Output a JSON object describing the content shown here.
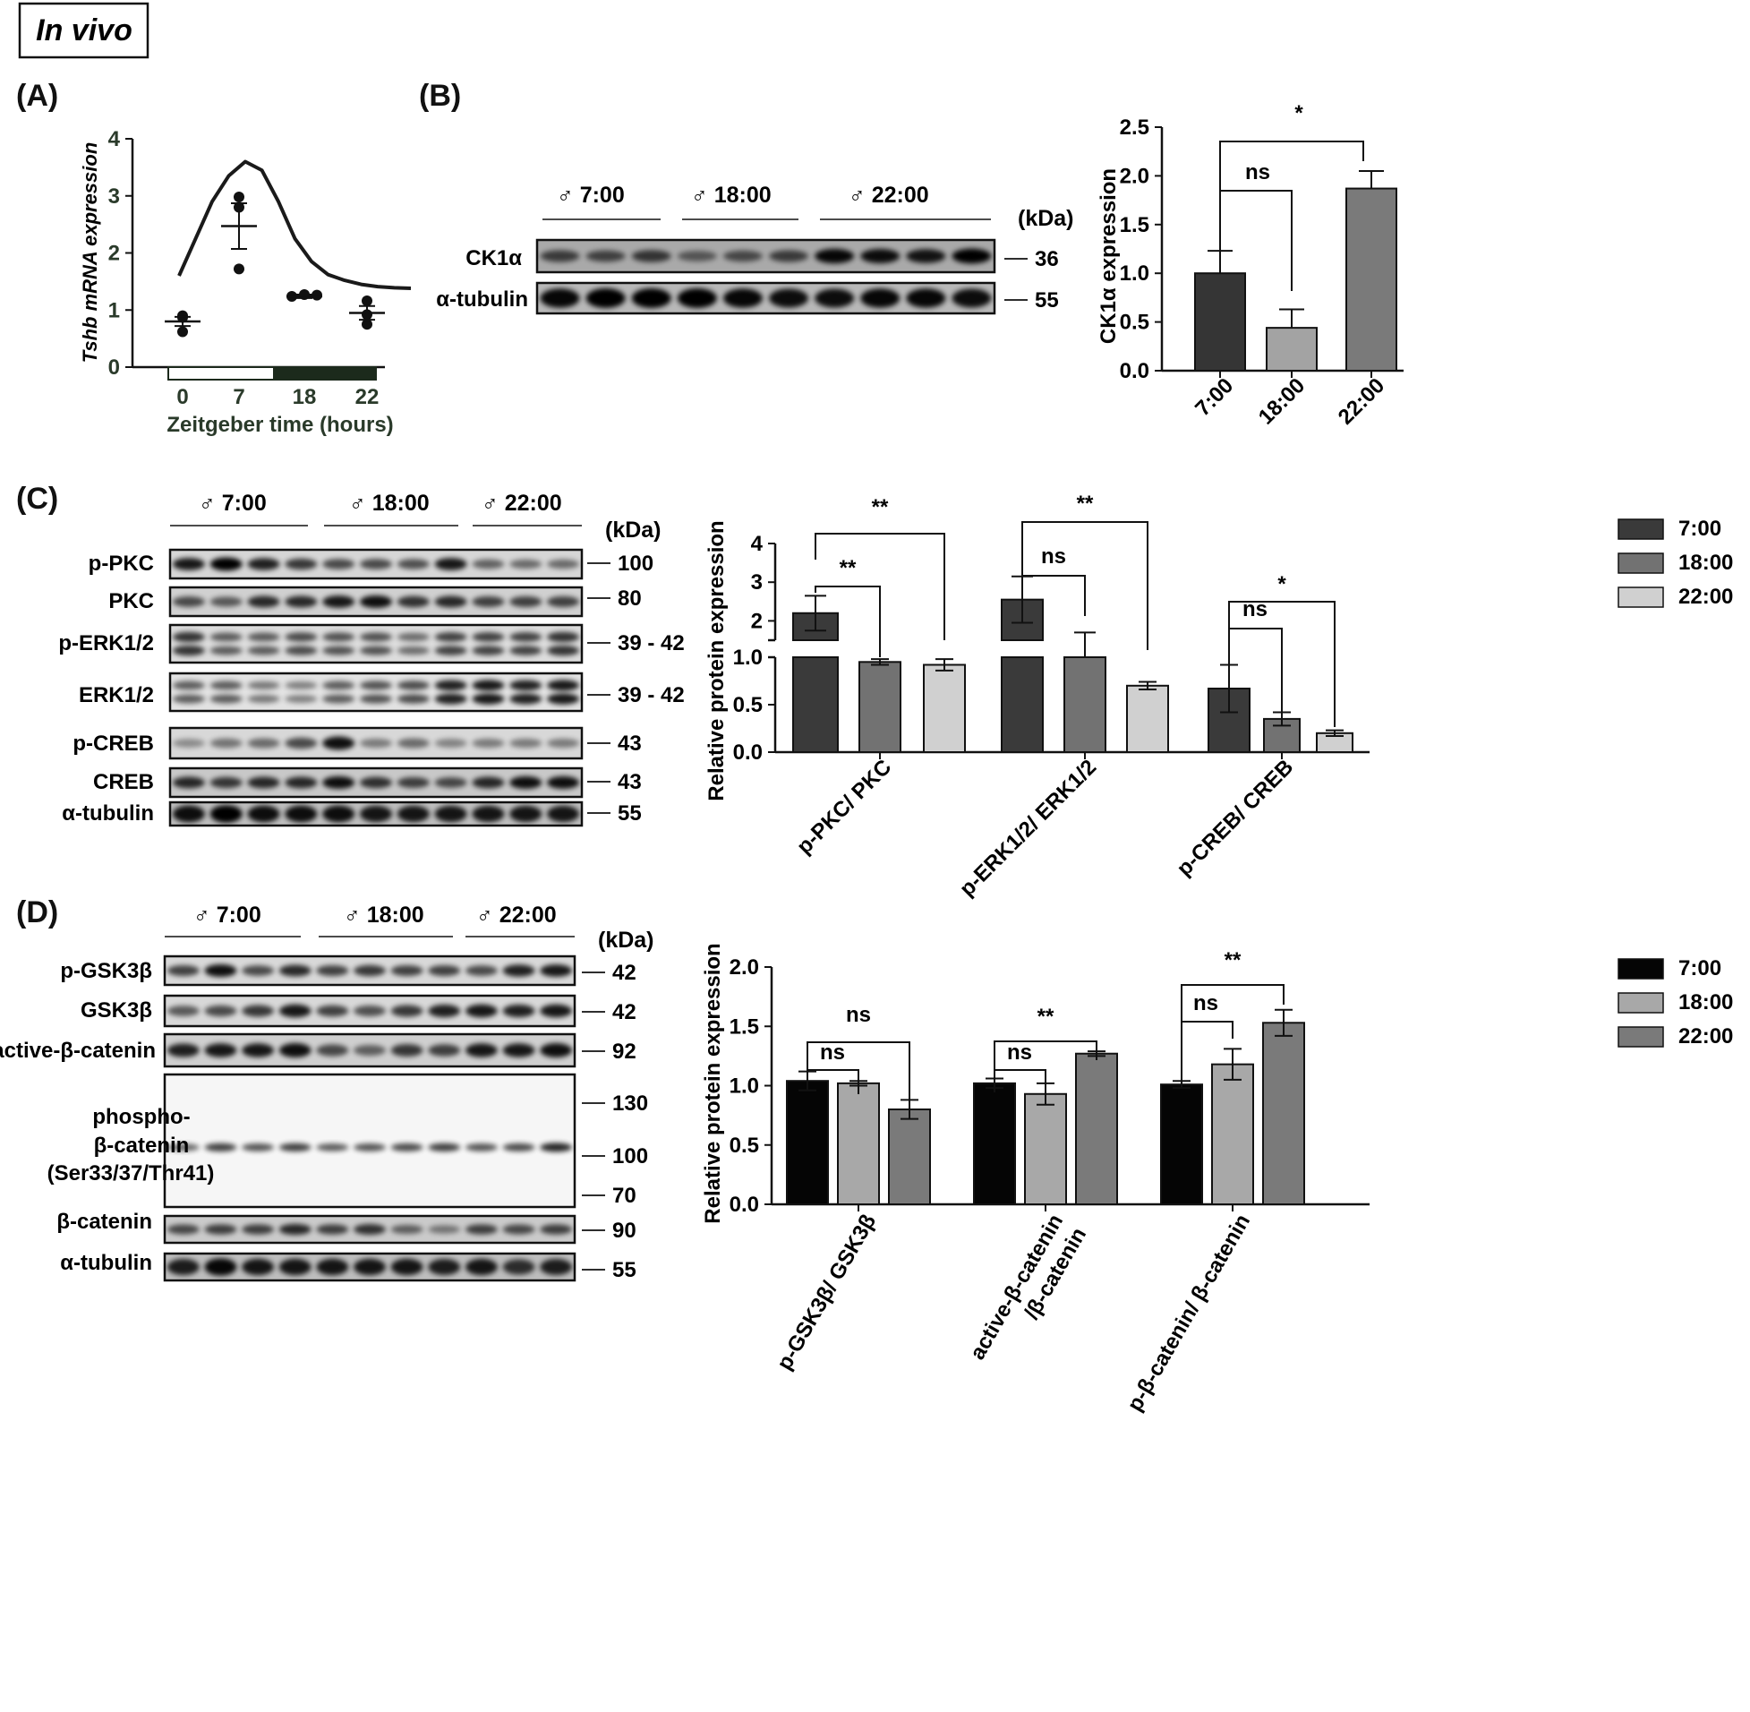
{
  "header": {
    "invivo": "In vivo"
  },
  "panels": {
    "A": "(A)",
    "B": "(B)",
    "C": "(C)",
    "D": "(D)"
  },
  "chart_data": [
    {
      "panel": "A",
      "type": "scatter",
      "ylabel": "Tshb mRNA expression",
      "xlabel": "Zeitgeber time (hours)",
      "ylim": [
        0,
        4
      ],
      "yticks": [
        "0",
        "1",
        "2",
        "3",
        "4"
      ],
      "categories": [
        "0",
        "7",
        "18",
        "22"
      ],
      "points": [
        [
          0.9,
          0.62,
          0.87
        ],
        [
          2.98,
          1.72,
          2.8
        ],
        [
          1.24,
          1.27,
          1.26
        ],
        [
          1.16,
          0.75,
          0.92
        ]
      ],
      "means": [
        0.8,
        2.47,
        1.24,
        0.95
      ],
      "sem": [
        0.08,
        0.4,
        0.03,
        0.12
      ],
      "fit_curve": [
        [
          0,
          1.6
        ],
        [
          1,
          2.25
        ],
        [
          2,
          2.9
        ],
        [
          3,
          3.35
        ],
        [
          4,
          3.6
        ],
        [
          5,
          3.45
        ],
        [
          6,
          2.9
        ],
        [
          7,
          2.25
        ],
        [
          8,
          1.85
        ],
        [
          9,
          1.62
        ],
        [
          10,
          1.52
        ],
        [
          11,
          1.45
        ],
        [
          12,
          1.41
        ],
        [
          13,
          1.39
        ],
        [
          14,
          1.38
        ]
      ],
      "light_bar": {
        "light": "0-7",
        "dark": "7-22"
      }
    },
    {
      "panel": "B",
      "type": "bar",
      "ylabel": "CK1α expression",
      "categories": [
        "7:00",
        "18:00",
        "22:00"
      ],
      "values": [
        1.0,
        0.44,
        1.87
      ],
      "errors": [
        0.23,
        0.19,
        0.18
      ],
      "colors": [
        "#353535",
        "#a3a3a3",
        "#7a7a7a"
      ],
      "ylim": [
        0,
        2.5
      ],
      "yticks": [
        "0.0",
        "0.5",
        "1.0",
        "1.5",
        "2.0",
        "2.5"
      ],
      "significance": [
        {
          "pair": "7:00-18:00",
          "label": "ns"
        },
        {
          "pair": "7:00-22:00",
          "label": "*"
        }
      ]
    },
    {
      "panel": "C",
      "type": "bar",
      "ylabel": "Relative protein expression",
      "categories": [
        "p-PKC/ PKC",
        "p-ERK1/2/ ERK1/2",
        "p-CREB/ CREB"
      ],
      "series": [
        {
          "name": "7:00",
          "values": [
            2.2,
            2.55,
            0.67
          ],
          "errors": [
            0.45,
            0.6,
            0.25
          ],
          "color": "#3a3a3a"
        },
        {
          "name": "18:00",
          "values": [
            0.95,
            1.35,
            0.35
          ],
          "errors": [
            0.03,
            0.35,
            0.07
          ],
          "color": "#727272"
        },
        {
          "name": "22:00",
          "values": [
            0.92,
            0.7,
            0.2
          ],
          "errors": [
            0.06,
            0.04,
            0.03
          ],
          "color": "#d0d0d0"
        }
      ],
      "axis_break": [
        1.0,
        1.5
      ],
      "yticks_lower": [
        "0.0",
        "0.5",
        "1.0"
      ],
      "yticks_upper": [
        "2",
        "3",
        "4"
      ],
      "significance": [
        {
          "group": "p-PKC/ PKC",
          "inner": "**",
          "outer": "**"
        },
        {
          "group": "p-ERK1/2/ ERK1/2",
          "inner": "ns",
          "outer": "**"
        },
        {
          "group": "p-CREB/ CREB",
          "inner": "ns",
          "outer": "*"
        }
      ]
    },
    {
      "panel": "D",
      "type": "bar",
      "ylabel": "Relative protein expression",
      "categories": [
        "p-GSK3β/ GSK3β",
        "active-β-catenin /β-catenin",
        "p-β-catenin/ β-catenin"
      ],
      "series": [
        {
          "name": "7:00",
          "values": [
            1.04,
            1.02,
            1.01
          ],
          "errors": [
            0.08,
            0.04,
            0.03
          ],
          "color": "#050505"
        },
        {
          "name": "18:00",
          "values": [
            1.02,
            0.93,
            1.18
          ],
          "errors": [
            0.02,
            0.09,
            0.13
          ],
          "color": "#a8a8a8"
        },
        {
          "name": "22:00",
          "values": [
            0.8,
            1.27,
            1.53
          ],
          "errors": [
            0.08,
            0.02,
            0.11
          ],
          "color": "#7a7a7a"
        }
      ],
      "ylim": [
        0,
        2.0
      ],
      "yticks": [
        "0.0",
        "0.5",
        "1.0",
        "1.5",
        "2.0"
      ],
      "significance": [
        {
          "group": "p-GSK3β/ GSK3β",
          "inner": "ns",
          "outer": "ns"
        },
        {
          "group": "active-β-catenin /β-catenin",
          "inner": "ns",
          "outer": "**"
        },
        {
          "group": "p-β-catenin/ β-catenin",
          "inner": "ns",
          "outer": "**"
        }
      ]
    }
  ],
  "blots": {
    "B": {
      "groups": [
        "♂ 7:00",
        "♂ 18:00",
        "♂ 22:00"
      ],
      "kda": "(kDa)",
      "rows": [
        {
          "label": "CK1α",
          "mw": "36"
        },
        {
          "label": "α-tubulin",
          "mw": "55"
        }
      ]
    },
    "C": {
      "groups": [
        "♂ 7:00",
        "♂ 18:00",
        "♂ 22:00"
      ],
      "kda": "(kDa)",
      "rows": [
        {
          "label": "p-PKC",
          "mw": "100"
        },
        {
          "label": "PKC",
          "mw": "80"
        },
        {
          "label": "p-ERK1/2",
          "mw": "39 - 42"
        },
        {
          "label": "ERK1/2",
          "mw": "39 - 42"
        },
        {
          "label": "p-CREB",
          "mw": "43"
        },
        {
          "label": "CREB",
          "mw": "43"
        },
        {
          "label": "α-tubulin",
          "mw": "55"
        }
      ]
    },
    "D": {
      "groups": [
        "♂ 7:00",
        "♂ 18:00",
        "♂ 22:00"
      ],
      "kda": "(kDa)",
      "rows": [
        {
          "label": "p-GSK3β",
          "mw": "42"
        },
        {
          "label": "GSK3β",
          "mw": "42"
        },
        {
          "label": "active-β-catenin",
          "mw": "92"
        },
        {
          "label": "phospho-",
          "label2": "β-catenin",
          "label3": "(Ser33/37/Thr41)",
          "mw": "130",
          "mw2": "100",
          "mw3": "70"
        },
        {
          "label": "β-catenin",
          "mw": "90"
        },
        {
          "label": "α-tubulin",
          "mw": "55"
        }
      ]
    }
  }
}
